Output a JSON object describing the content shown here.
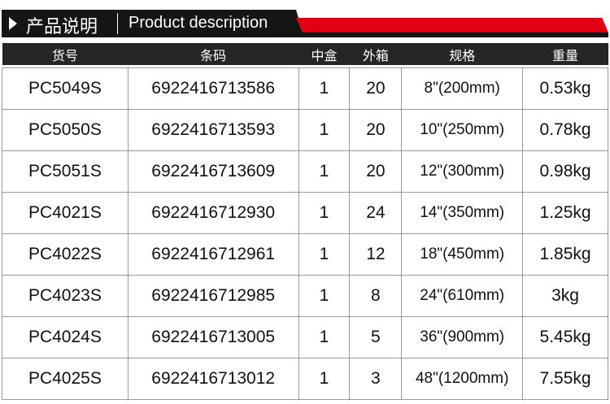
{
  "banner": {
    "title_cn": "产品说明",
    "title_en": "Product description",
    "accent": "#e00012"
  },
  "table": {
    "headers": [
      "货号",
      "条码",
      "中盒",
      "外箱",
      "规格",
      "重量"
    ],
    "rows": [
      [
        "PC5049S",
        "6922416713586",
        "1",
        "20",
        "8\"(200mm)",
        "0.53kg"
      ],
      [
        "PC5050S",
        "6922416713593",
        "1",
        "20",
        "10\"(250mm)",
        "0.78kg"
      ],
      [
        "PC5051S",
        "6922416713609",
        "1",
        "20",
        "12\"(300mm)",
        "0.98kg"
      ],
      [
        "PC4021S",
        "6922416712930",
        "1",
        "24",
        "14\"(350mm)",
        "1.25kg"
      ],
      [
        "PC4022S",
        "6922416712961",
        "1",
        "12",
        "18\"(450mm)",
        "1.85kg"
      ],
      [
        "PC4023S",
        "6922416712985",
        "1",
        "8",
        "24\"(610mm)",
        "3kg"
      ],
      [
        "PC4024S",
        "6922416713005",
        "1",
        "5",
        "36\"(900mm)",
        "5.45kg"
      ],
      [
        "PC4025S",
        "6922416713012",
        "1",
        "3",
        "48\"(1200mm)",
        "7.55kg"
      ]
    ]
  }
}
